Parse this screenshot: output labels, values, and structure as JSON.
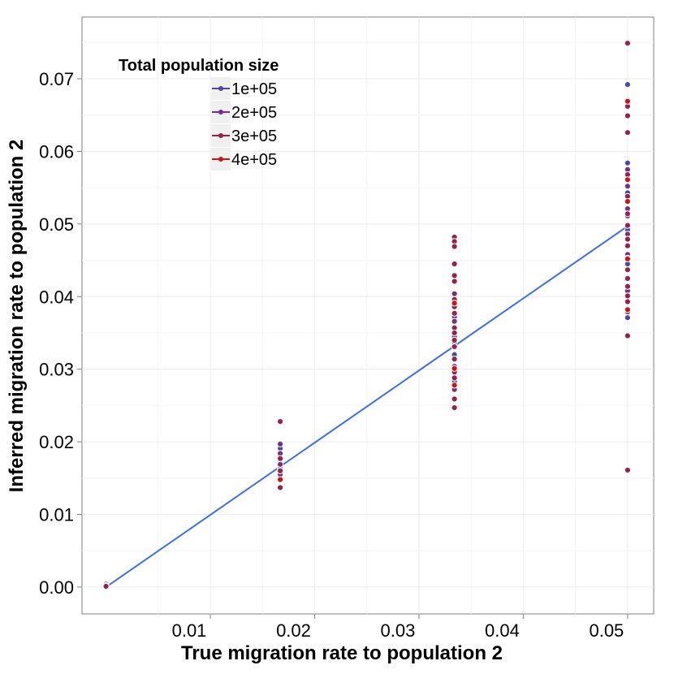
{
  "chart_data": {
    "type": "scatter",
    "xlabel": "True migration rate to population 2",
    "ylabel": "Inferred migration rate to population 2",
    "xlim": [
      -0.0023,
      0.0525
    ],
    "ylim": [
      -0.0037,
      0.0785
    ],
    "x_ticks": [
      0.01,
      0.02,
      0.03,
      0.04,
      0.05
    ],
    "x_tick_labels": [
      "0.01",
      "0.02",
      "0.03",
      "0.04",
      "0.05"
    ],
    "y_ticks": [
      0.0,
      0.01,
      0.02,
      0.03,
      0.04,
      0.05,
      0.06,
      0.07
    ],
    "y_tick_labels": [
      "0.00",
      "0.01",
      "0.02",
      "0.03",
      "0.04",
      "0.05",
      "0.06",
      "0.07"
    ],
    "grid": true,
    "legend": {
      "title": "Total population size",
      "position": "top-left",
      "entries": [
        {
          "label": "1e+05",
          "color": "#4b47a6"
        },
        {
          "label": "2e+05",
          "color": "#772e88"
        },
        {
          "label": "3e+05",
          "color": "#99204c"
        },
        {
          "label": "4e+05",
          "color": "#cc1414"
        }
      ]
    },
    "trend_line": {
      "color": "#3a6ef0",
      "from": [
        0.0,
        0.0
      ],
      "to": [
        0.05,
        0.0497
      ]
    },
    "series": [
      {
        "name": "1e+05",
        "color": "#4b47a6",
        "x": [
          0.0,
          0.0,
          0.0167,
          0.0167,
          0.0167,
          0.0334,
          0.0334,
          0.0334,
          0.0334,
          0.05,
          0.05,
          0.05,
          0.05,
          0.05,
          0.05,
          0.05
        ],
        "y": [
          0.0004,
          0.0001,
          0.0163,
          0.0175,
          0.0191,
          0.0372,
          0.0345,
          0.032,
          0.0283,
          0.0692,
          0.0584,
          0.0543,
          0.0511,
          0.0492,
          0.0445,
          0.0371
        ]
      },
      {
        "name": "2e+05",
        "color": "#772e88",
        "x": [
          0.0,
          0.0167,
          0.0167,
          0.0167,
          0.0167,
          0.0334,
          0.0334,
          0.0334,
          0.0334,
          0.0334,
          0.05,
          0.05,
          0.05,
          0.05,
          0.05,
          0.05,
          0.05
        ],
        "y": [
          0.0002,
          0.0197,
          0.0184,
          0.0169,
          0.0155,
          0.0404,
          0.0366,
          0.0337,
          0.0304,
          0.0272,
          0.0664,
          0.0575,
          0.0552,
          0.0521,
          0.0486,
          0.0458,
          0.0408
        ]
      },
      {
        "name": "3e+05",
        "color": "#99204c",
        "x": [
          0.0,
          0.0167,
          0.0167,
          0.0167,
          0.0167,
          0.0334,
          0.0334,
          0.0334,
          0.0334,
          0.0334,
          0.0334,
          0.0334,
          0.0334,
          0.0334,
          0.0334,
          0.0334,
          0.0334,
          0.0334,
          0.0334,
          0.0334,
          0.0334,
          0.0334,
          0.0334,
          0.05,
          0.05,
          0.05,
          0.05,
          0.05,
          0.05,
          0.05,
          0.05,
          0.05,
          0.05,
          0.05,
          0.05,
          0.05,
          0.05,
          0.05,
          0.05,
          0.05,
          0.05,
          0.05
        ],
        "y": [
          0.0001,
          0.0228,
          0.0177,
          0.016,
          0.0137,
          0.0482,
          0.0476,
          0.0469,
          0.0445,
          0.0429,
          0.0421,
          0.0396,
          0.0386,
          0.0377,
          0.0357,
          0.035,
          0.034,
          0.0331,
          0.0314,
          0.0296,
          0.0288,
          0.0259,
          0.0247,
          0.0161,
          0.0749,
          0.0662,
          0.0649,
          0.0626,
          0.0568,
          0.0538,
          0.0514,
          0.0498,
          0.0479,
          0.047,
          0.0453,
          0.0437,
          0.0425,
          0.0414,
          0.0401,
          0.0393,
          0.0379,
          0.0346
        ]
      },
      {
        "name": "4e+05",
        "color": "#cc1414",
        "x": [
          0.0167,
          0.0334,
          0.0334,
          0.0334,
          0.05,
          0.05,
          0.05,
          0.05,
          0.05
        ],
        "y": [
          0.0148,
          0.0391,
          0.0301,
          0.0278,
          0.0669,
          0.0561,
          0.0531,
          0.0452,
          0.0382
        ]
      }
    ]
  }
}
